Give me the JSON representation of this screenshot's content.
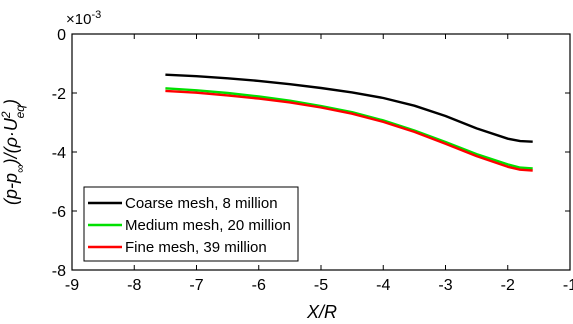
{
  "chart_data": {
    "type": "line",
    "xlabel": "X/R",
    "ylabel_parts": {
      "a": "(p-p",
      "a_sub": "∞",
      "b": ")/(ρ·U",
      "b_sup": "2",
      "b_sub": "eq",
      "c": ")"
    },
    "y_multiplier": {
      "base": "×10",
      "exponent": "-3"
    },
    "xlim": [
      -9,
      -1
    ],
    "ylim": [
      -8,
      0
    ],
    "xticks": [
      -9,
      -8,
      -7,
      -6,
      -5,
      -4,
      -3,
      -2,
      -1
    ],
    "yticks": [
      -8,
      -6,
      -4,
      -2,
      0
    ],
    "legend_position": "lower-left",
    "x": [
      -7.5,
      -7.0,
      -6.5,
      -6.0,
      -5.5,
      -5.0,
      -4.5,
      -4.0,
      -3.5,
      -3.0,
      -2.5,
      -2.0,
      -1.8,
      -1.6
    ],
    "series": [
      {
        "name": "Coarse mesh, 8 million",
        "color": "#000000",
        "values": [
          -1.38,
          -1.43,
          -1.5,
          -1.59,
          -1.7,
          -1.83,
          -1.98,
          -2.17,
          -2.43,
          -2.78,
          -3.2,
          -3.55,
          -3.63,
          -3.65
        ]
      },
      {
        "name": "Medium mesh, 20 million",
        "color": "#00e000",
        "values": [
          -1.84,
          -1.91,
          -2.0,
          -2.12,
          -2.26,
          -2.44,
          -2.65,
          -2.93,
          -3.27,
          -3.66,
          -4.07,
          -4.42,
          -4.53,
          -4.56
        ]
      },
      {
        "name": "Fine mesh, 39 million",
        "color": "#ff0000",
        "values": [
          -1.93,
          -1.99,
          -2.08,
          -2.19,
          -2.32,
          -2.49,
          -2.7,
          -2.98,
          -3.32,
          -3.72,
          -4.14,
          -4.5,
          -4.6,
          -4.63
        ]
      }
    ]
  }
}
